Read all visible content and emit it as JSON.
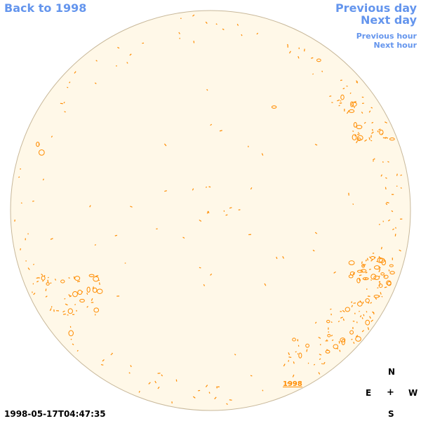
{
  "nav": {
    "back_label": "Back to 1998",
    "prev_day_label": "Previous day",
    "next_day_label": "Next day",
    "prev_hour_label": "Previous hour",
    "next_hour_label": "Next hour"
  },
  "disk": {
    "fill_color": "#fff8e8",
    "border_color": "#c8b89a",
    "contour_color": "#ff8c00",
    "year_label": "1998"
  },
  "compass": {
    "north": "N",
    "east": "E",
    "center": "+",
    "west": "W",
    "south": "S"
  },
  "timestamp": "1998-05-17T04:47:35"
}
